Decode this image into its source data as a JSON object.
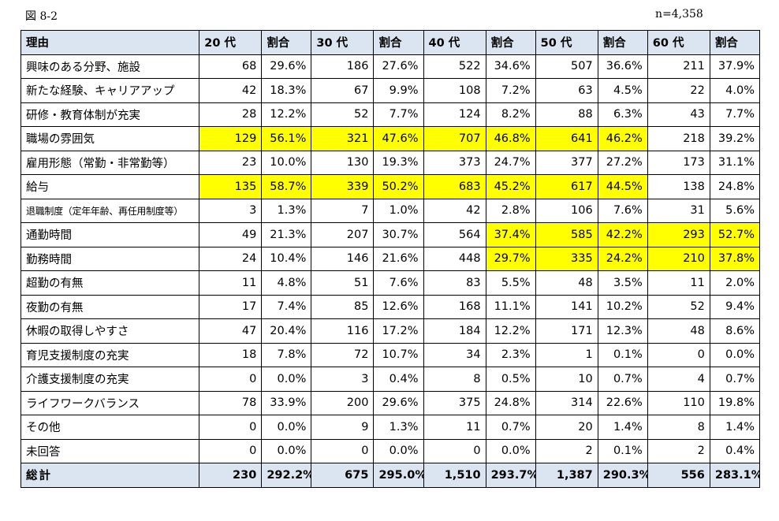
{
  "figure_label": "図 8-2",
  "n_label": "n=4,358",
  "headers": [
    "理由",
    "20 代",
    "割合",
    "30 代",
    "割合",
    "40 代",
    "割合",
    "50 代",
    "割合",
    "60 代",
    "割合"
  ],
  "highlight_color": "#ffff00",
  "header_bg": "#dbe5f1",
  "rows": [
    {
      "reason": "興味のある分野、施設",
      "small": false,
      "cells": [
        "68",
        "29.6%",
        "186",
        "27.6%",
        "522",
        "34.6%",
        "507",
        "36.6%",
        "211",
        "37.9%"
      ],
      "hl": []
    },
    {
      "reason": "新たな経験、キャリアアップ",
      "small": false,
      "cells": [
        "42",
        "18.3%",
        "67",
        "9.9%",
        "108",
        "7.2%",
        "63",
        "4.5%",
        "22",
        "4.0%"
      ],
      "hl": []
    },
    {
      "reason": "研修・教育体制が充実",
      "small": false,
      "cells": [
        "28",
        "12.2%",
        "52",
        "7.7%",
        "124",
        "8.2%",
        "88",
        "6.3%",
        "43",
        "7.7%"
      ],
      "hl": []
    },
    {
      "reason": "職場の雰囲気",
      "small": false,
      "cells": [
        "129",
        "56.1%",
        "321",
        "47.6%",
        "707",
        "46.8%",
        "641",
        "46.2%",
        "218",
        "39.2%"
      ],
      "hl": [
        0,
        1,
        2,
        3,
        4,
        5,
        6,
        7
      ]
    },
    {
      "reason": "雇用形態（常勤・非常勤等）",
      "small": false,
      "cells": [
        "23",
        "10.0%",
        "130",
        "19.3%",
        "373",
        "24.7%",
        "377",
        "27.2%",
        "173",
        "31.1%"
      ],
      "hl": []
    },
    {
      "reason": "給与",
      "small": false,
      "cells": [
        "135",
        "58.7%",
        "339",
        "50.2%",
        "683",
        "45.2%",
        "617",
        "44.5%",
        "138",
        "24.8%"
      ],
      "hl": [
        0,
        1,
        2,
        3,
        4,
        5,
        6,
        7
      ]
    },
    {
      "reason": "退職制度（定年年齢、再任用制度等）",
      "small": true,
      "cells": [
        "3",
        "1.3%",
        "7",
        "1.0%",
        "42",
        "2.8%",
        "106",
        "7.6%",
        "31",
        "5.6%"
      ],
      "hl": []
    },
    {
      "reason": "通勤時間",
      "small": false,
      "cells": [
        "49",
        "21.3%",
        "207",
        "30.7%",
        "564",
        "37.4%",
        "585",
        "42.2%",
        "293",
        "52.7%"
      ],
      "hl": [
        5,
        6,
        7,
        8,
        9
      ]
    },
    {
      "reason": "勤務時間",
      "small": false,
      "cells": [
        "24",
        "10.4%",
        "146",
        "21.6%",
        "448",
        "29.7%",
        "335",
        "24.2%",
        "210",
        "37.8%"
      ],
      "hl": [
        5,
        6,
        7,
        8,
        9
      ]
    },
    {
      "reason": "超勤の有無",
      "small": false,
      "cells": [
        "11",
        "4.8%",
        "51",
        "7.6%",
        "83",
        "5.5%",
        "48",
        "3.5%",
        "11",
        "2.0%"
      ],
      "hl": []
    },
    {
      "reason": "夜勤の有無",
      "small": false,
      "cells": [
        "17",
        "7.4%",
        "85",
        "12.6%",
        "168",
        "11.1%",
        "141",
        "10.2%",
        "52",
        "9.4%"
      ],
      "hl": []
    },
    {
      "reason": "休暇の取得しやすさ",
      "small": false,
      "cells": [
        "47",
        "20.4%",
        "116",
        "17.2%",
        "184",
        "12.2%",
        "171",
        "12.3%",
        "48",
        "8.6%"
      ],
      "hl": []
    },
    {
      "reason": "育児支援制度の充実",
      "small": false,
      "cells": [
        "18",
        "7.8%",
        "72",
        "10.7%",
        "34",
        "2.3%",
        "1",
        "0.1%",
        "0",
        "0.0%"
      ],
      "hl": []
    },
    {
      "reason": "介護支援制度の充実",
      "small": false,
      "cells": [
        "0",
        "0.0%",
        "3",
        "0.4%",
        "8",
        "0.5%",
        "10",
        "0.7%",
        "4",
        "0.7%"
      ],
      "hl": []
    },
    {
      "reason": "ライフワークバランス",
      "small": false,
      "cells": [
        "78",
        "33.9%",
        "200",
        "29.6%",
        "375",
        "24.8%",
        "314",
        "22.6%",
        "110",
        "19.8%"
      ],
      "hl": []
    },
    {
      "reason": "その他",
      "small": false,
      "cells": [
        "0",
        "0.0%",
        "9",
        "1.3%",
        "11",
        "0.7%",
        "20",
        "1.4%",
        "8",
        "1.4%"
      ],
      "hl": []
    },
    {
      "reason": "未回答",
      "small": false,
      "cells": [
        "0",
        "0.0%",
        "0",
        "0.0%",
        "0",
        "0.0%",
        "2",
        "0.1%",
        "2",
        "0.4%"
      ],
      "hl": []
    }
  ],
  "total": {
    "reason": "総計",
    "cells": [
      "230",
      "292.2%",
      "675",
      "295.0%",
      "1,510",
      "293.7%",
      "1,387",
      "290.3%",
      "556",
      "283.1%"
    ]
  }
}
